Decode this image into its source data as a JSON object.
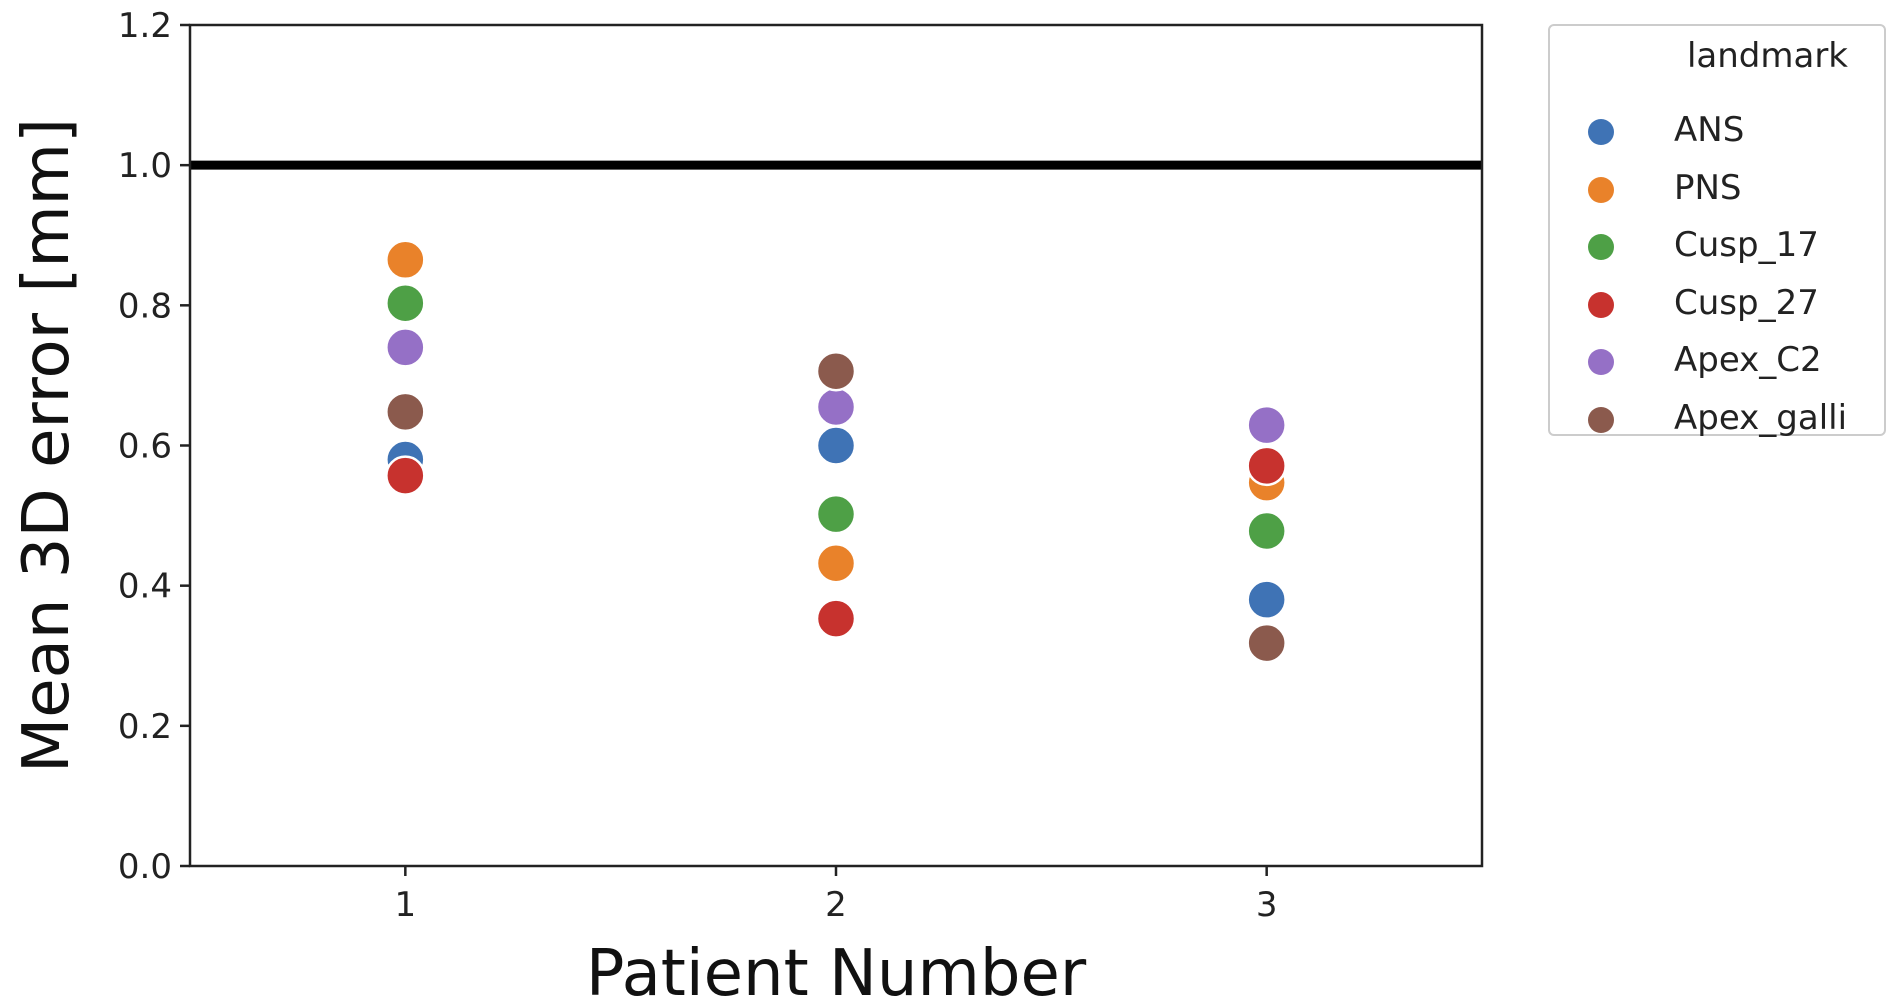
{
  "chart_data": {
    "type": "scatter",
    "xlabel": "Patient Number",
    "ylabel": "Mean 3D error [mm]",
    "categories": [
      "1",
      "2",
      "3"
    ],
    "ylim": [
      0.0,
      1.2
    ],
    "yticks": [
      "0.0",
      "0.2",
      "0.4",
      "0.6",
      "0.8",
      "1.0",
      "1.2"
    ],
    "reference_line": {
      "y": 1.0,
      "color": "#000000"
    },
    "grid": false,
    "legend": {
      "title": "landmark",
      "placement": "outside-right"
    },
    "series": [
      {
        "name": "ANS",
        "color": "#3f73b5",
        "values": [
          0.58,
          0.6,
          0.38
        ]
      },
      {
        "name": "PNS",
        "color": "#e9822a",
        "values": [
          0.865,
          0.432,
          0.547
        ]
      },
      {
        "name": "Cusp_17",
        "color": "#4ea046",
        "values": [
          0.803,
          0.502,
          0.478
        ]
      },
      {
        "name": "Cusp_27",
        "color": "#c7322e",
        "values": [
          0.557,
          0.353,
          0.571
        ]
      },
      {
        "name": "Apex_C2",
        "color": "#9570c6",
        "values": [
          0.74,
          0.655,
          0.629
        ]
      },
      {
        "name": "Apex_galli",
        "color": "#8b5a4d",
        "values": [
          0.648,
          0.706,
          0.318
        ]
      }
    ]
  }
}
